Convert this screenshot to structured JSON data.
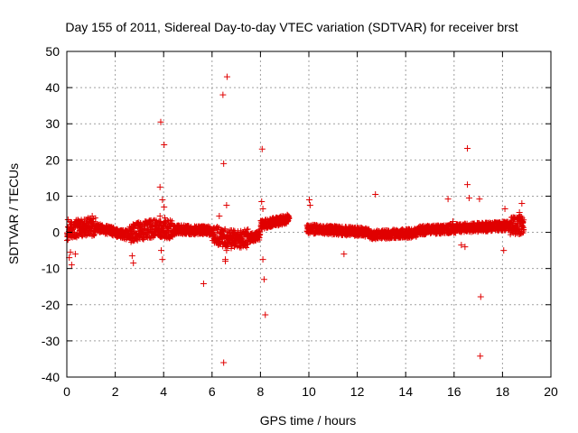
{
  "chart_data": {
    "type": "scatter",
    "title": "Day 155 of 2011, Sidereal Day-to-day VTEC variation (SDTVAR) for receiver brst",
    "xlabel": "GPS time / hours",
    "ylabel": "SDTVAR / TECUs",
    "xlim": [
      0,
      20
    ],
    "ylim": [
      -40,
      50
    ],
    "xticks": [
      0,
      2,
      4,
      6,
      8,
      10,
      12,
      14,
      16,
      18,
      20
    ],
    "yticks": [
      -40,
      -30,
      -20,
      -10,
      0,
      10,
      20,
      30,
      40,
      50
    ],
    "grid": true,
    "marker": "plus",
    "color": "#e00000",
    "series": [
      {
        "name": "brst",
        "x": [
          3.88,
          4.02,
          6.62,
          6.45,
          6.48,
          8.07,
          3.85,
          16.55,
          16.62,
          15.75,
          12.75,
          10.02,
          10.05,
          3.95,
          6.6,
          4.02,
          8.05,
          8.1,
          17.05,
          16.55,
          8.1,
          11.45,
          5.65,
          17.1,
          8.15,
          17.08,
          6.48,
          0.2,
          0.15,
          0.35,
          1.05,
          3.9,
          3.95,
          6.55,
          6.3,
          4.05,
          16.3,
          16.45,
          18.8,
          18.7,
          2.75,
          2.7,
          3.85,
          8.2,
          15.95,
          6.6,
          6.55,
          18.1,
          18.05,
          0.05,
          0.1
        ],
        "y": [
          30.5,
          24.2,
          43.0,
          38.0,
          19.0,
          23.0,
          12.5,
          23.2,
          9.5,
          9.2,
          10.5,
          9.0,
          7.5,
          9.0,
          7.5,
          7.0,
          8.5,
          6.5,
          9.2,
          13.2,
          -7.5,
          -6.0,
          -14.2,
          -17.8,
          -13.0,
          -34.2,
          -36.0,
          -9.0,
          -5.5,
          -6.0,
          4.5,
          -5.0,
          -7.5,
          -8.0,
          4.5,
          4.0,
          -3.5,
          -4.0,
          8.0,
          5.5,
          -8.5,
          -6.5,
          4.5,
          -22.8,
          3.0,
          -5.0,
          -7.5,
          6.5,
          -5.0,
          3.5,
          -7.0
        ]
      }
    ]
  }
}
